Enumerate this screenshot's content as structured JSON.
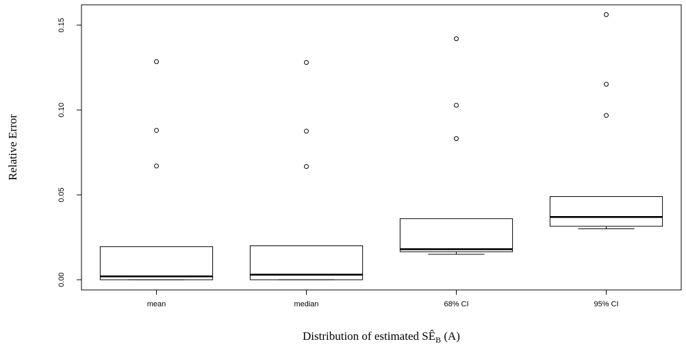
{
  "chart_data": {
    "type": "boxplot",
    "xlabel": {
      "main": "Distribution of estimated SÊ",
      "subscript": "B",
      "suffix": " (A)"
    },
    "ylabel": "Relative Error",
    "ylim": [
      -0.006,
      0.162
    ],
    "yticks": [
      0.0,
      0.05,
      0.1,
      0.15
    ],
    "ytick_labels": [
      "0.00",
      "0.05",
      "0.10",
      "0.15"
    ],
    "grid": false,
    "legend": "none",
    "categories": [
      "mean",
      "median",
      "68% CI",
      "95% CI"
    ],
    "boxes": [
      {
        "category": "mean",
        "whisker_low": 0.0,
        "q1": 0.0,
        "median": 0.002,
        "q3": 0.0195,
        "whisker_high": 0.0195,
        "outliers": [
          0.067,
          0.088,
          0.1285
        ]
      },
      {
        "category": "median",
        "whisker_low": 0.0,
        "q1": 0.0,
        "median": 0.003,
        "q3": 0.02,
        "whisker_high": 0.02,
        "outliers": [
          0.0667,
          0.0875,
          0.128
        ]
      },
      {
        "category": "68% CI",
        "whisker_low": 0.015,
        "q1": 0.0165,
        "median": 0.018,
        "q3": 0.036,
        "whisker_high": 0.036,
        "outliers": [
          0.0832,
          0.1028,
          0.142
        ]
      },
      {
        "category": "95% CI",
        "whisker_low": 0.03,
        "q1": 0.0315,
        "median": 0.037,
        "q3": 0.049,
        "whisker_high": 0.049,
        "outliers": [
          0.0968,
          0.1152,
          0.1562
        ]
      }
    ]
  }
}
